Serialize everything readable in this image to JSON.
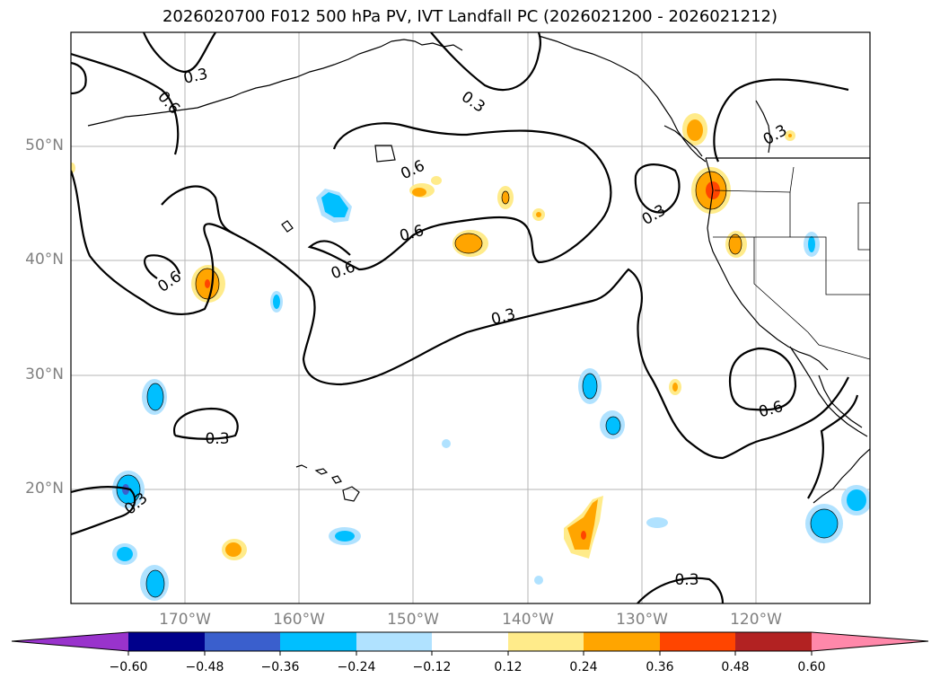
{
  "title": "2026020700 F012 500 hPa PV, IVT Landfall PC (2026021200 - 2026021212)",
  "map": {
    "projection": "plate-carree",
    "lon_range": [
      -180,
      -110
    ],
    "lat_range": [
      10,
      60
    ],
    "lat_labels": [
      "50°N",
      "40°N",
      "30°N",
      "20°N"
    ],
    "lon_labels": [
      "170°W",
      "160°W",
      "150°W",
      "140°W",
      "130°W",
      "120°W"
    ]
  },
  "contour_labels": [
    "0.3",
    "0.6",
    "0.3",
    "0.6",
    "0.6",
    "0.6",
    "0.6",
    "0.3",
    "0.3",
    "0.3",
    "0.6",
    "0.3",
    "0.3",
    "0.3"
  ],
  "colorbar": {
    "ticks": [
      "−0.60",
      "−0.48",
      "−0.36",
      "−0.24",
      "−0.12",
      "0.12",
      "0.24",
      "0.36",
      "0.48",
      "0.60"
    ],
    "colors": [
      "#9933cc",
      "#00008b",
      "#3a5fcd",
      "#00bfff",
      "#b0e2ff",
      "#ffffff",
      "#ffeb8a",
      "#ffa500",
      "#ff4500",
      "#b22222",
      "#ff88aa"
    ]
  }
}
